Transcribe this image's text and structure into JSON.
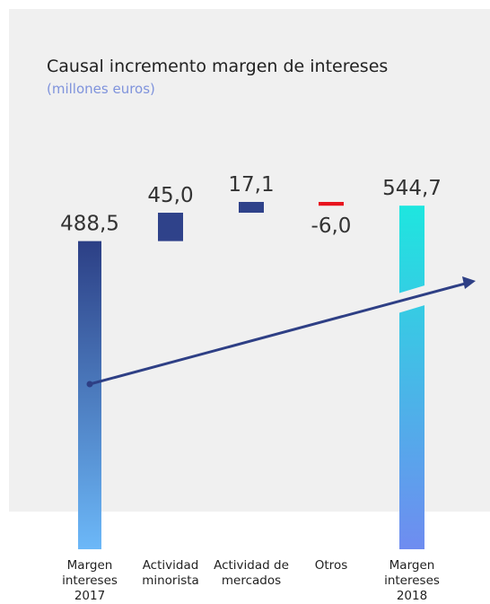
{
  "chart_data": {
    "type": "waterfall",
    "title": "Causal incremento margen de intereses",
    "subtitle": "(millones euros)",
    "categories": [
      "Margen\nintereses\n2017",
      "Actividad\nminorista",
      "Actividad de\nmercados",
      "Otros",
      "Margen\nintereses\n2018"
    ],
    "values": [
      488.5,
      45.0,
      17.1,
      -6.0,
      544.7
    ],
    "value_labels": [
      "488,5",
      "45,0",
      "17,1",
      "-6,0",
      "544,7"
    ],
    "is_total": [
      true,
      false,
      false,
      false,
      true
    ],
    "colors": [
      "#2c3f85",
      "#2f428a",
      "#2f428a",
      "#e8141e",
      "#1ee6df"
    ]
  }
}
